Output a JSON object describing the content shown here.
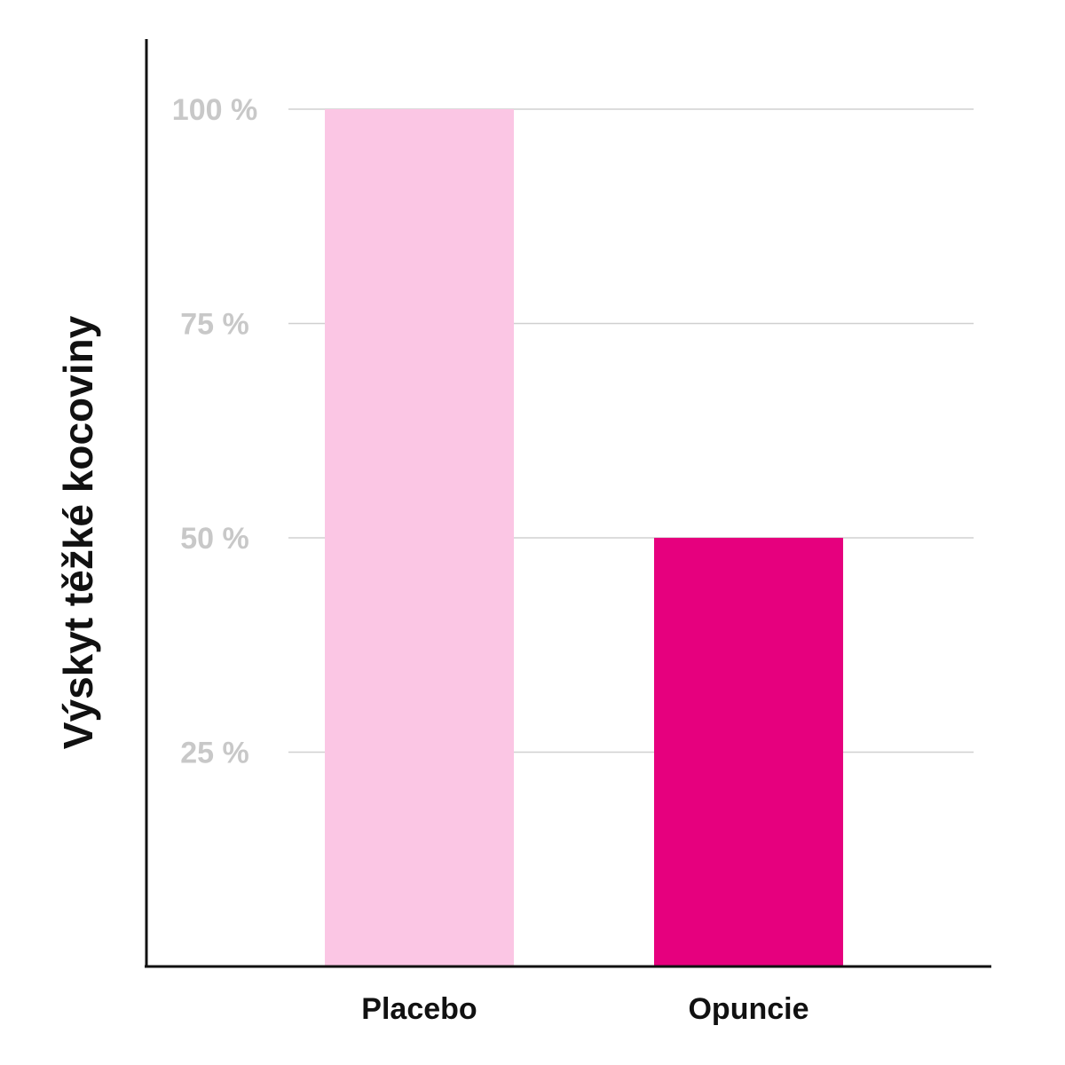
{
  "chart_data": {
    "type": "bar",
    "categories": [
      "Placebo",
      "Opuncie"
    ],
    "values": [
      100,
      50
    ],
    "bar_colors": [
      "#fbc6e4",
      "#e6007e"
    ],
    "title": "",
    "xlabel": "",
    "ylabel": "Výskyt těžké kocoviny",
    "ylim": [
      0,
      100
    ],
    "yticks": [
      25,
      50,
      75,
      100
    ],
    "ytick_labels": [
      "25 %",
      "50 %",
      "75 %",
      "100 %"
    ],
    "grid": true,
    "grid_color": "#d0d0d0",
    "axis_color": "#111111",
    "tick_label_color": "#c8c8c8"
  }
}
